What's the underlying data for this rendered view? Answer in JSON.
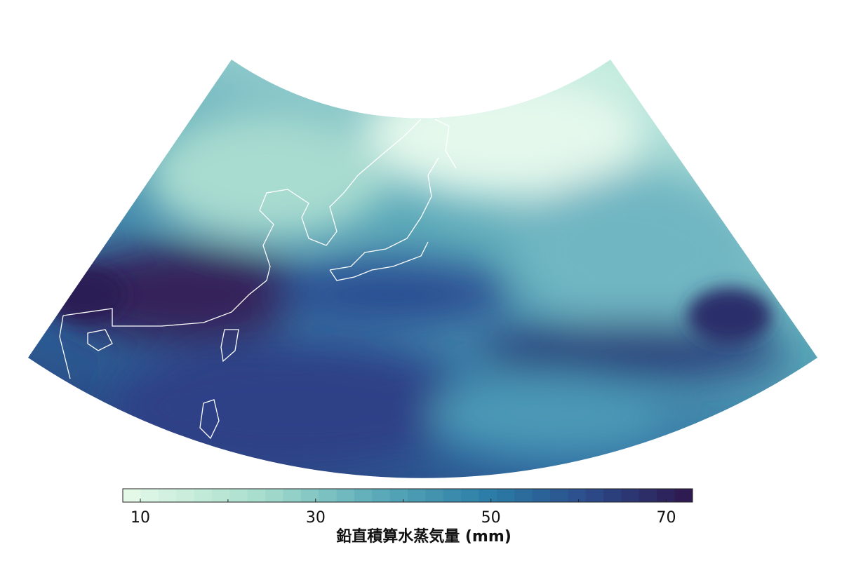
{
  "colorbar": {
    "label": "鉛直積算水蒸気量 (mm)",
    "lim": [
      8,
      73
    ],
    "ticks": [
      10,
      30,
      50,
      70
    ],
    "minor_ticks": [
      20,
      40,
      60
    ]
  }
}
